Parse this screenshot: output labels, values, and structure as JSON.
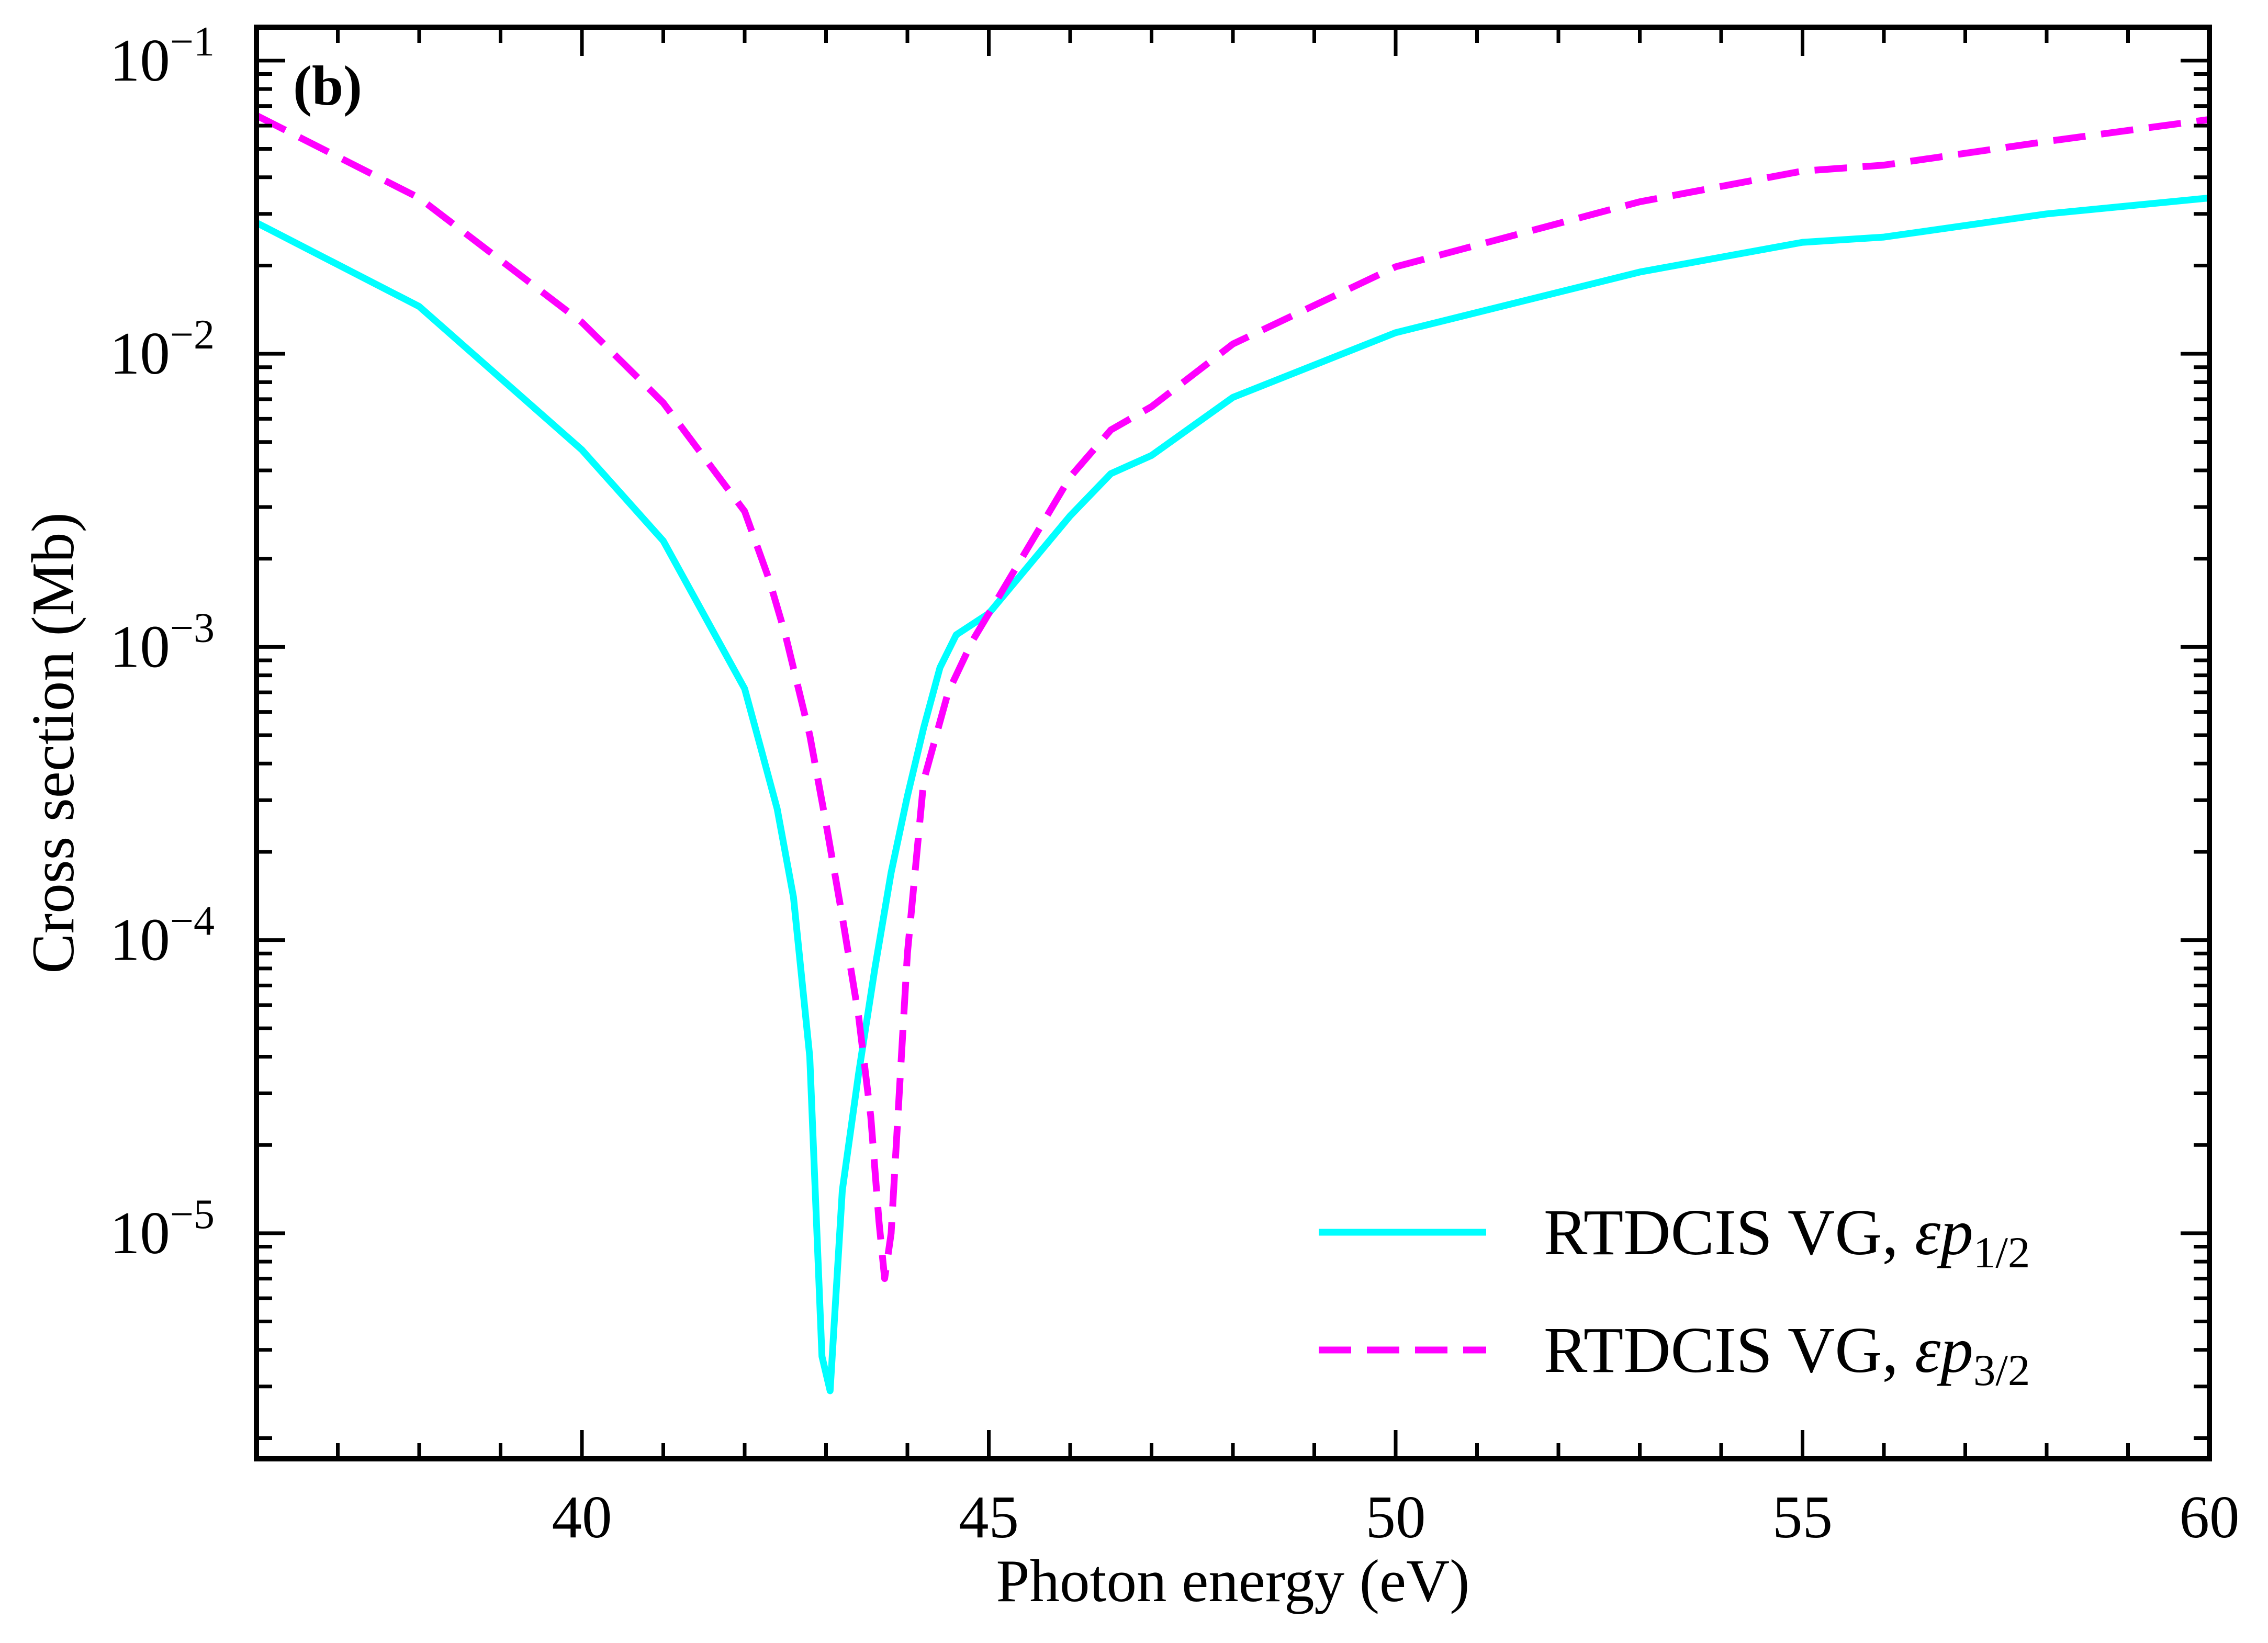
{
  "chart_data": {
    "type": "line",
    "panel_label": "(b)",
    "xlabel": "Photon energy (eV)",
    "ylabel": "Cross section (Mb)",
    "xscale": "linear",
    "yscale": "log",
    "xlim": [
      36,
      60
    ],
    "ylim": [
      1.7e-06,
      0.13
    ],
    "x_ticks": [
      40,
      45,
      50,
      55,
      60
    ],
    "x_tick_labels": [
      "40",
      "45",
      "50",
      "55",
      "60"
    ],
    "y_ticks": [
      {
        "value": 1e-05,
        "base": "10",
        "exp": "−5"
      },
      {
        "value": 0.0001,
        "base": "10",
        "exp": "−4"
      },
      {
        "value": 0.001,
        "base": "10",
        "exp": "−3"
      },
      {
        "value": 0.01,
        "base": "10",
        "exp": "−2"
      },
      {
        "value": 0.1,
        "base": "10",
        "exp": "−1"
      }
    ],
    "legend_position": "bottom-right",
    "series": [
      {
        "name": "RTDCIS VG, εp1/2",
        "legend_prefix": "RTDCIS VG, ",
        "legend_symbol": "εp",
        "legend_subscript": "1/2",
        "color": "#00FFFF",
        "style": "solid",
        "x": [
          36,
          38,
          40,
          41,
          42,
          42.2,
          42.4,
          42.6,
          42.8,
          42.95,
          43.05,
          43.2,
          43.4,
          43.6,
          43.8,
          44.0,
          44.2,
          44.4,
          44.6,
          45.0,
          46.0,
          46.5,
          47.0,
          48.0,
          50.0,
          53.0,
          55.0,
          56.0,
          58.0,
          60.0
        ],
        "y": [
          0.028,
          0.0145,
          0.0047,
          0.0023,
          0.00072,
          0.00045,
          0.00028,
          0.00014,
          4e-05,
          3.8e-06,
          2.9e-06,
          1.4e-05,
          3.5e-05,
          8e-05,
          0.00017,
          0.00031,
          0.00053,
          0.00085,
          0.0011,
          0.0013,
          0.0028,
          0.0039,
          0.0045,
          0.0071,
          0.0118,
          0.019,
          0.024,
          0.025,
          0.03,
          0.034
        ]
      },
      {
        "name": "RTDCIS VG, εp3/2",
        "legend_prefix": "RTDCIS VG, ",
        "legend_symbol": "εp",
        "legend_subscript": "3/2",
        "color": "#FF00FF",
        "style": "dashed",
        "x": [
          36,
          38,
          40,
          41,
          42,
          42.3,
          42.5,
          42.8,
          43.0,
          43.2,
          43.4,
          43.55,
          43.65,
          43.72,
          43.8,
          43.9,
          44.0,
          44.2,
          44.5,
          44.8,
          45.0,
          46.0,
          46.5,
          47.0,
          48.0,
          50.0,
          53.0,
          55.0,
          56.0,
          58.0,
          60.0
        ],
        "y": [
          0.065,
          0.034,
          0.0128,
          0.0068,
          0.0029,
          0.0017,
          0.0011,
          0.0005,
          0.00025,
          0.00012,
          5.5e-05,
          2.5e-05,
          1.1e-05,
          7e-06,
          1e-05,
          3e-05,
          9e-05,
          0.00035,
          0.0007,
          0.00105,
          0.0013,
          0.0038,
          0.0055,
          0.0066,
          0.0108,
          0.0198,
          0.033,
          0.042,
          0.044,
          0.053,
          0.063
        ]
      }
    ]
  }
}
